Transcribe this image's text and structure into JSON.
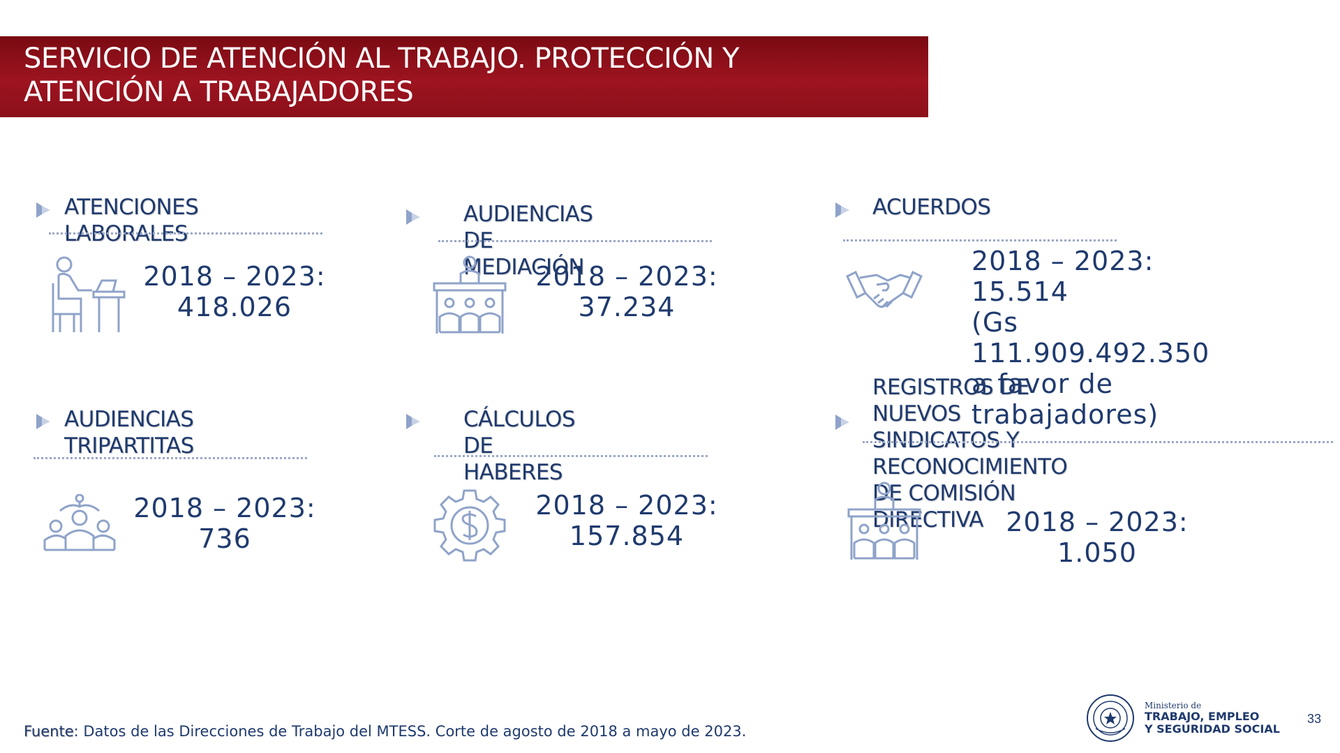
{
  "banner": {
    "line1": "SERVICIO DE ATENCIÓN AL TRABAJO. PROTECCIÓN Y",
    "line2": "ATENCIÓN A TRABAJADORES"
  },
  "sections": {
    "atenciones": {
      "title": "ATENCIONES LABORALES",
      "line1": "2018 – 2023:",
      "line2": "418.026",
      "icon": "desk-worker-icon"
    },
    "mediacion": {
      "title": "AUDIENCIAS DE MEDIACIÓN",
      "line1": "2018 – 2023:",
      "line2": "37.234",
      "icon": "meeting-table-icon"
    },
    "acuerdos": {
      "title": "ACUERDOS",
      "line1": "2018 – 2023: 15.514",
      "line2": "(Gs 111.909.492.350",
      "line3": "a favor de",
      "line4": "trabajadores)",
      "icon": "handshake-icon"
    },
    "tripartitas": {
      "title": "AUDIENCIAS TRIPARTITAS",
      "line1": "2018 – 2023:",
      "line2": "736",
      "icon": "group-people-icon"
    },
    "calculos": {
      "title1": "CÁLCULOS DE",
      "title2": "HABERES",
      "line1": "2018 – 2023:",
      "line2": "157.854",
      "icon": "dollar-gear-icon"
    },
    "sindicatos": {
      "title1": "REGISTROS DE NUEVOS SINDICATOS Y",
      "title2": "RECONOCIMIENTO DE COMISIÓN",
      "title3": "DIRECTIVA",
      "line1": "2018 – 2023:",
      "line2": "1.050",
      "icon": "meeting-table-icon"
    }
  },
  "footer": {
    "label": "Fuente",
    "text": ": Datos de las Direcciones de Trabajo del MTESS. Corte de agosto de 2018 a mayo de 2023."
  },
  "ministry": {
    "small": "Ministerio de",
    "line1": "TRABAJO, EMPLEO",
    "line2": "Y SEGURIDAD SOCIAL",
    "seal_text": "REPUBLICA DEL PARAGUAY"
  },
  "page_number": "33",
  "colors": {
    "banner": "#9d1420",
    "text": "#1f3a6e",
    "icon": "#8fa3c9"
  }
}
